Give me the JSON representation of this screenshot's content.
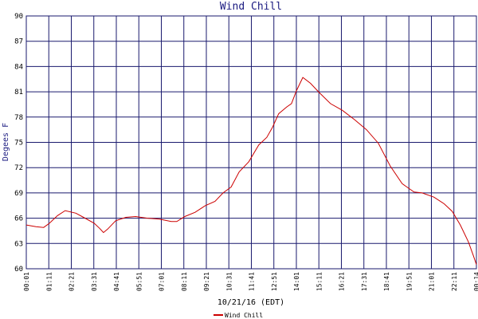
{
  "chart_data": {
    "type": "line",
    "title": "Wind Chill",
    "y_label": "Degees F",
    "x_label": "10/21/16 (EDT)",
    "xlim": [
      1,
      1401
    ],
    "ylim": [
      60,
      90
    ],
    "yticks": [
      60,
      63,
      66,
      69,
      72,
      75,
      78,
      81,
      84,
      87,
      90
    ],
    "xticks": [
      {
        "value": 1,
        "label": "00:01"
      },
      {
        "value": 71,
        "label": "01:11"
      },
      {
        "value": 141,
        "label": "02:21"
      },
      {
        "value": 211,
        "label": "03:31"
      },
      {
        "value": 281,
        "label": "04:41"
      },
      {
        "value": 351,
        "label": "05:51"
      },
      {
        "value": 421,
        "label": "07:01"
      },
      {
        "value": 491,
        "label": "08:11"
      },
      {
        "value": 561,
        "label": "09:21"
      },
      {
        "value": 631,
        "label": "10:31"
      },
      {
        "value": 701,
        "label": "11:41"
      },
      {
        "value": 771,
        "label": "12:51"
      },
      {
        "value": 841,
        "label": "14:01"
      },
      {
        "value": 911,
        "label": "15:11"
      },
      {
        "value": 981,
        "label": "16:21"
      },
      {
        "value": 1051,
        "label": "17:31"
      },
      {
        "value": 1121,
        "label": "18:41"
      },
      {
        "value": 1191,
        "label": "19:51"
      },
      {
        "value": 1261,
        "label": "21:01"
      },
      {
        "value": 1331,
        "label": "22:11"
      },
      {
        "value": 1401,
        "label": "00:14"
      }
    ],
    "grid": true,
    "legend": "bottom",
    "series": [
      {
        "name": "Wind Chill",
        "color": "#cc0000",
        "x": [
          1,
          31,
          55,
          73,
          98,
          122,
          155,
          179,
          212,
          229,
          241,
          254,
          279,
          311,
          341,
          378,
          415,
          452,
          469,
          494,
          526,
          558,
          588,
          613,
          638,
          663,
          693,
          724,
          749,
          767,
          786,
          811,
          826,
          841,
          861,
          885,
          910,
          947,
          984,
          1022,
          1059,
          1096,
          1133,
          1170,
          1207,
          1232,
          1269,
          1301,
          1326,
          1351,
          1376,
          1391,
          1401
        ],
        "values": [
          65.2,
          65.0,
          64.9,
          65.4,
          66.3,
          66.9,
          66.6,
          66.1,
          65.4,
          64.8,
          64.3,
          64.7,
          65.7,
          66.1,
          66.2,
          66.0,
          65.9,
          65.6,
          65.6,
          66.2,
          66.7,
          67.5,
          68.0,
          69.0,
          69.7,
          71.5,
          72.7,
          74.7,
          75.6,
          76.8,
          78.4,
          79.2,
          79.6,
          81.1,
          82.7,
          82.0,
          81.0,
          79.6,
          78.8,
          77.7,
          76.5,
          74.9,
          72.2,
          70.1,
          69.1,
          69.0,
          68.5,
          67.7,
          66.8,
          65.2,
          63.2,
          61.6,
          60.5
        ]
      }
    ]
  }
}
